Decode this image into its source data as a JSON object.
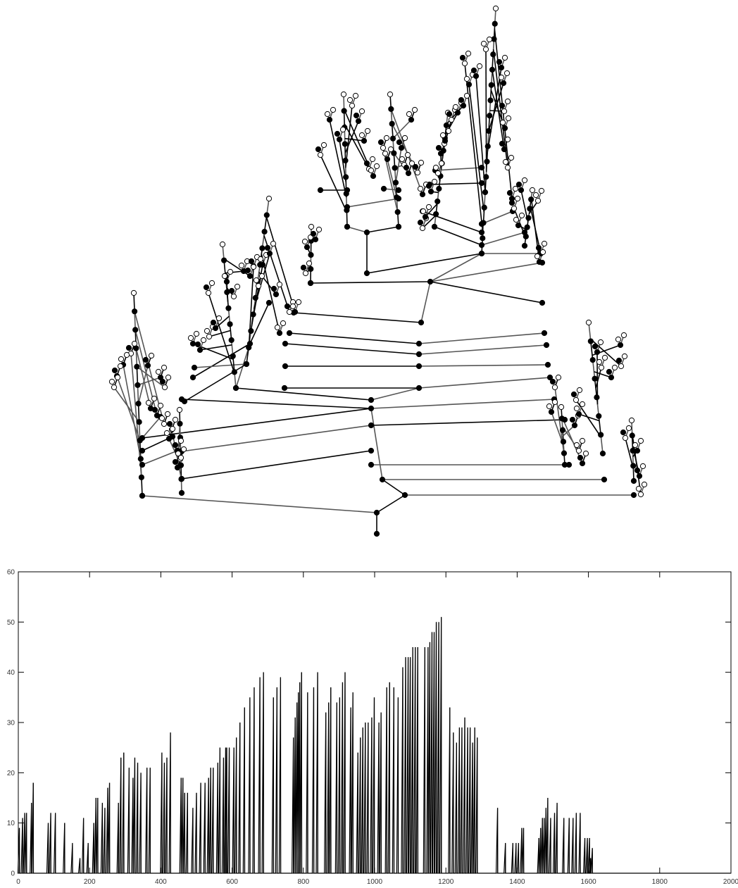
{
  "chart_data": [
    {
      "type": "tree",
      "title": "",
      "node_fill_colors": {
        "leaf": "#ffffff",
        "internal": "#000000"
      },
      "edge_colors": [
        "#000000",
        "#555555"
      ],
      "axes_visible": false
    },
    {
      "type": "line",
      "title": "",
      "xlabel": "",
      "ylabel": "",
      "xlim": [
        0,
        2000
      ],
      "ylim": [
        0,
        60
      ],
      "xticks": [
        0,
        200,
        400,
        600,
        800,
        1000,
        1200,
        1400,
        1600,
        1800,
        2000
      ],
      "yticks": [
        0,
        10,
        20,
        30,
        40,
        50,
        60
      ],
      "grid": false,
      "line_color": "#000000",
      "spikes": [
        [
          3,
          9
        ],
        [
          12,
          11
        ],
        [
          18,
          12
        ],
        [
          23,
          12
        ],
        [
          37,
          14
        ],
        [
          42,
          18
        ],
        [
          84,
          10
        ],
        [
          91,
          12
        ],
        [
          104,
          12
        ],
        [
          130,
          10
        ],
        [
          152,
          6
        ],
        [
          173,
          3
        ],
        [
          183,
          11
        ],
        [
          196,
          6
        ],
        [
          212,
          10
        ],
        [
          218,
          15
        ],
        [
          223,
          15
        ],
        [
          236,
          14
        ],
        [
          243,
          13
        ],
        [
          251,
          17
        ],
        [
          256,
          18
        ],
        [
          281,
          14
        ],
        [
          288,
          23
        ],
        [
          296,
          24
        ],
        [
          311,
          21
        ],
        [
          322,
          19
        ],
        [
          327,
          23
        ],
        [
          335,
          22
        ],
        [
          344,
          20
        ],
        [
          361,
          21
        ],
        [
          370,
          21
        ],
        [
          403,
          24
        ],
        [
          410,
          22
        ],
        [
          417,
          23
        ],
        [
          427,
          28
        ],
        [
          457,
          19
        ],
        [
          462,
          19
        ],
        [
          467,
          16
        ],
        [
          475,
          16
        ],
        [
          490,
          13
        ],
        [
          500,
          16
        ],
        [
          512,
          18
        ],
        [
          524,
          18
        ],
        [
          534,
          19
        ],
        [
          540,
          21
        ],
        [
          547,
          21
        ],
        [
          560,
          22
        ],
        [
          566,
          25
        ],
        [
          576,
          23
        ],
        [
          582,
          25
        ],
        [
          585,
          25
        ],
        [
          592,
          25
        ],
        [
          605,
          25
        ],
        [
          612,
          27
        ],
        [
          622,
          30
        ],
        [
          635,
          33
        ],
        [
          650,
          35
        ],
        [
          662,
          37
        ],
        [
          678,
          39
        ],
        [
          688,
          40
        ],
        [
          716,
          35
        ],
        [
          726,
          37
        ],
        [
          736,
          39
        ],
        [
          772,
          27
        ],
        [
          777,
          31
        ],
        [
          782,
          34
        ],
        [
          786,
          36
        ],
        [
          790,
          38
        ],
        [
          795,
          40
        ],
        [
          812,
          36
        ],
        [
          829,
          37
        ],
        [
          840,
          40
        ],
        [
          863,
          32
        ],
        [
          871,
          34
        ],
        [
          877,
          37
        ],
        [
          894,
          34
        ],
        [
          902,
          35
        ],
        [
          910,
          38
        ],
        [
          917,
          40
        ],
        [
          933,
          33
        ],
        [
          939,
          36
        ],
        [
          953,
          24
        ],
        [
          960,
          27
        ],
        [
          967,
          29
        ],
        [
          974,
          30
        ],
        [
          982,
          30
        ],
        [
          992,
          31
        ],
        [
          999,
          35
        ],
        [
          1012,
          30
        ],
        [
          1018,
          32
        ],
        [
          1034,
          37
        ],
        [
          1042,
          38
        ],
        [
          1054,
          37
        ],
        [
          1066,
          35
        ],
        [
          1079,
          41
        ],
        [
          1087,
          43
        ],
        [
          1094,
          43
        ],
        [
          1100,
          43
        ],
        [
          1107,
          45
        ],
        [
          1114,
          45
        ],
        [
          1121,
          45
        ],
        [
          1141,
          45
        ],
        [
          1150,
          45
        ],
        [
          1155,
          46
        ],
        [
          1161,
          48
        ],
        [
          1167,
          48
        ],
        [
          1173,
          50
        ],
        [
          1180,
          50
        ],
        [
          1187,
          51
        ],
        [
          1211,
          33
        ],
        [
          1221,
          28
        ],
        [
          1230,
          26
        ],
        [
          1238,
          29
        ],
        [
          1245,
          29
        ],
        [
          1253,
          31
        ],
        [
          1261,
          29
        ],
        [
          1268,
          29
        ],
        [
          1275,
          26
        ],
        [
          1281,
          29
        ],
        [
          1288,
          27
        ],
        [
          1345,
          13
        ],
        [
          1367,
          6
        ],
        [
          1388,
          6
        ],
        [
          1397,
          6
        ],
        [
          1404,
          6
        ],
        [
          1413,
          9
        ],
        [
          1418,
          9
        ],
        [
          1461,
          7
        ],
        [
          1466,
          9
        ],
        [
          1471,
          11
        ],
        [
          1476,
          11
        ],
        [
          1481,
          13
        ],
        [
          1486,
          15
        ],
        [
          1494,
          11
        ],
        [
          1505,
          12
        ],
        [
          1512,
          14
        ],
        [
          1531,
          11
        ],
        [
          1546,
          11
        ],
        [
          1557,
          11
        ],
        [
          1566,
          12
        ],
        [
          1577,
          12
        ],
        [
          1590,
          7
        ],
        [
          1597,
          7
        ],
        [
          1603,
          7
        ],
        [
          1606,
          3
        ],
        [
          1611,
          5
        ]
      ]
    }
  ]
}
